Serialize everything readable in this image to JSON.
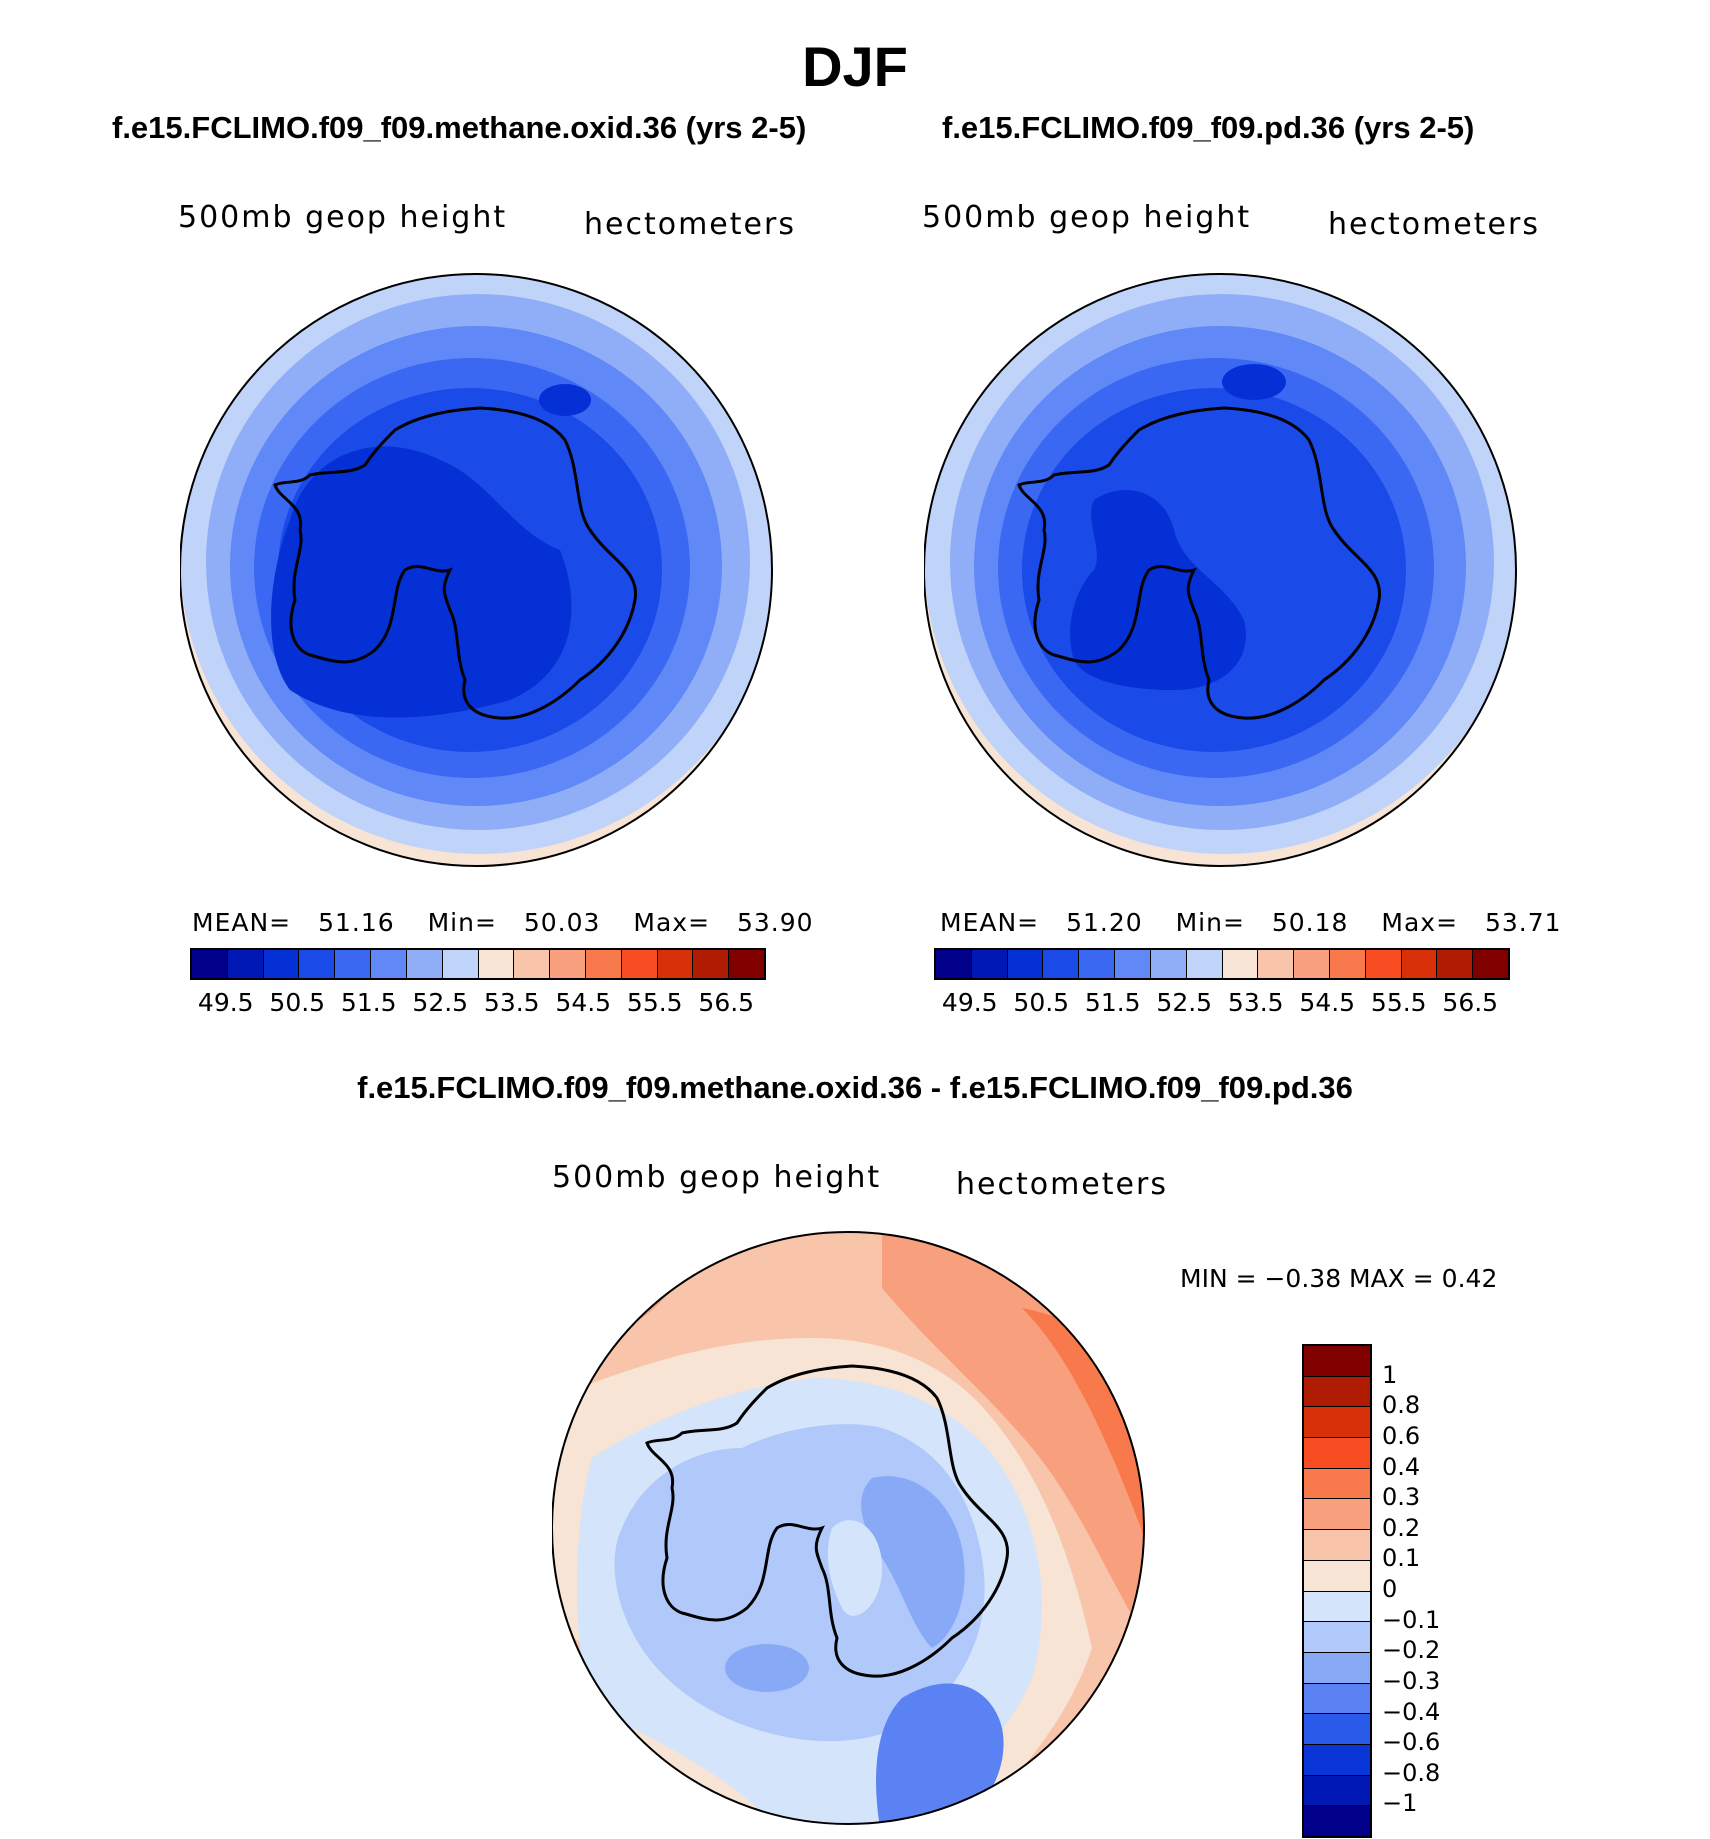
{
  "figure_title": "DJF",
  "panels": [
    {
      "title": "f.e15.FCLIMO.f09_f09.methane.oxid.36 (yrs 2-5)",
      "variable": "500mb geop height",
      "units": "hectometers",
      "stats": {
        "mean_label": "MEAN=",
        "mean": "51.16",
        "min_label": "Min=",
        "min": "50.03",
        "max_label": "Max=",
        "max": "53.90"
      }
    },
    {
      "title": "f.e15.FCLIMO.f09_f09.pd.36 (yrs 2-5)",
      "variable": "500mb geop height",
      "units": "hectometers",
      "stats": {
        "mean_label": "MEAN=",
        "mean": "51.20",
        "min_label": "Min=",
        "min": "50.18",
        "max_label": "Max=",
        "max": "53.71"
      }
    }
  ],
  "diff_panel": {
    "title": "f.e15.FCLIMO.f09_f09.methane.oxid.36 - f.e15.FCLIMO.f09_f09.pd.36",
    "variable": "500mb geop height",
    "units": "hectometers",
    "minmax_text": "MIN =   −0.38 MAX =    0.42"
  },
  "colorbar_abs": {
    "colors": [
      "#00008a",
      "#0018b4",
      "#0430d6",
      "#1a4ae8",
      "#3a68f2",
      "#6088f6",
      "#90aef8",
      "#c0d4fa",
      "#f8e4d4",
      "#f8c4aa",
      "#f8a07e",
      "#f87a4c",
      "#f84c22",
      "#d83008",
      "#b01c02",
      "#800000"
    ],
    "tick_labels": [
      "49.5",
      "50.5",
      "51.5",
      "52.5",
      "53.5",
      "54.5",
      "55.5",
      "56.5"
    ]
  },
  "colorbar_diff": {
    "colors": [
      "#800000",
      "#b01c02",
      "#d83008",
      "#f84c22",
      "#f87a4c",
      "#f8a07e",
      "#f8c4aa",
      "#f8e4d4",
      "#d4e4fa",
      "#b0c8fa",
      "#88aaf6",
      "#5a82f2",
      "#2a5aea",
      "#0a36d8",
      "#0018b4",
      "#00008a"
    ],
    "tick_labels": [
      "1",
      "0.8",
      "0.6",
      "0.4",
      "0.3",
      "0.2",
      "0.1",
      "0",
      "−0.1",
      "−0.2",
      "−0.3",
      "−0.4",
      "−0.6",
      "−0.8",
      "−1"
    ]
  }
}
